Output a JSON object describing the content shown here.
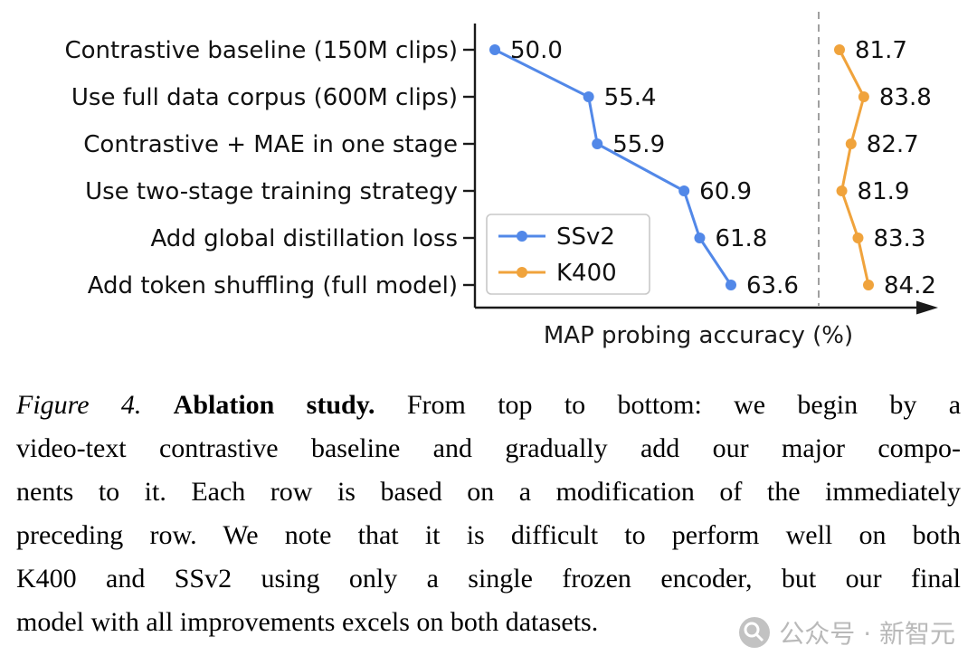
{
  "chart_data": {
    "type": "line",
    "orientation": "horizontal-dot-line",
    "categories": [
      "Contrastive baseline (150M clips)",
      "Use full data corpus (600M clips)",
      "Contrastive + MAE in one stage",
      "Use two-stage training strategy",
      "Add global distillation loss",
      "Add token shuffling (full model)"
    ],
    "series": [
      {
        "name": "SSv2",
        "color": "#5288e8",
        "values": [
          50.0,
          55.4,
          55.9,
          60.9,
          61.8,
          63.6
        ]
      },
      {
        "name": "K400",
        "color": "#f0a33c",
        "values": [
          81.7,
          83.8,
          82.7,
          81.9,
          83.3,
          84.2
        ]
      }
    ],
    "xlabel": "MAP probing accuracy (%)",
    "axis_break_separator": true,
    "separator_style": "dashed-gray-vertical",
    "legend_position": "inside-lower-left",
    "grid": false,
    "value_labels_shown": true
  },
  "caption": {
    "figure_label": "Figure 4.",
    "title": "Ablation study.",
    "lines": [
      "From top to bottom: we begin by a",
      "video-text contrastive baseline and gradually add our major compo-",
      "nents to it. Each row is based on a modification of the immediately",
      "preceding row. We note that it is difficult to perform well on both",
      "K400 and SSv2 using only a single frozen encoder, but our final",
      "model with all improvements excels on both datasets."
    ]
  },
  "watermark": {
    "text": "公众号 · 新智元"
  },
  "colors": {
    "ssv2_blue": "#5288e8",
    "k400_orange": "#f0a33c",
    "separator_gray": "#a0a0a0",
    "axis_black": "#1a1a1a"
  }
}
